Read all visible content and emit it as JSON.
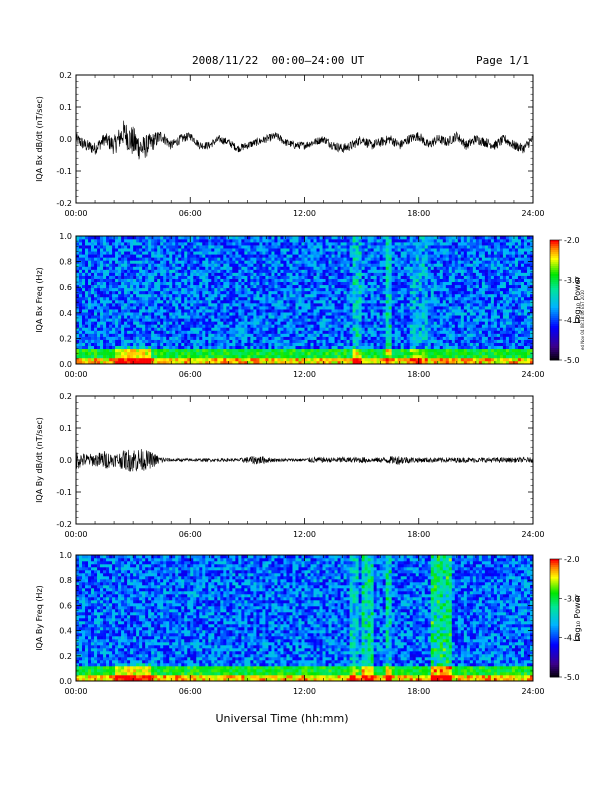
{
  "header": {
    "title": "2008/11/22  00:00–24:00 UT",
    "page": "Page 1/1"
  },
  "footer": {
    "xlabel": "Universal Time (hh:mm)"
  },
  "side_stamp": "ed Nov 04 08:18:06 EST 2010",
  "colorbar": {
    "label": "Log₁₀ Power",
    "ticks": [
      "-2.0",
      "-3.0",
      "-4.0",
      "-5.0"
    ]
  },
  "chart_data": [
    {
      "type": "line",
      "ylabel": "IQA Bx dB/dt (nT/sec)",
      "xlim": [
        0,
        24
      ],
      "ylim": [
        -0.2,
        0.2
      ],
      "yticks": [
        "0.2",
        "0.1",
        "0.0",
        "-0.1",
        "-0.2"
      ],
      "xticks": [
        "00:00",
        "06:00",
        "12:00",
        "18:00",
        "24:00"
      ],
      "series": [
        {
          "x": [
            0,
            0.5,
            1,
            1.5,
            2,
            2.5,
            3,
            3.5,
            4,
            4.5,
            5,
            5.5,
            6,
            6.5,
            7,
            7.5,
            8,
            8.5,
            9,
            9.5,
            10,
            10.5,
            11,
            11.5,
            12,
            12.5,
            13,
            13.5,
            14,
            14.5,
            15,
            15.5,
            16,
            16.5,
            17,
            17.5,
            18,
            18.5,
            19,
            19.5,
            20,
            20.5,
            21,
            21.5,
            22,
            22.5,
            23,
            23.5,
            24
          ],
          "y": [
            0.0,
            -0.02,
            -0.03,
            0.0,
            -0.02,
            0.02,
            -0.01,
            -0.03,
            -0.01,
            0.01,
            -0.02,
            0.0,
            0.01,
            -0.02,
            -0.02,
            0.0,
            -0.01,
            -0.03,
            -0.02,
            -0.01,
            0.0,
            0.01,
            -0.01,
            -0.02,
            -0.02,
            -0.01,
            0.0,
            -0.02,
            -0.03,
            -0.02,
            0.0,
            -0.02,
            -0.01,
            0.0,
            -0.02,
            0.0,
            0.01,
            -0.02,
            0.0,
            -0.01,
            0.01,
            -0.02,
            0.0,
            -0.01,
            -0.02,
            0.0,
            -0.02,
            -0.03,
            0.0
          ],
          "amp": [
            0.02,
            0.02,
            0.02,
            0.02,
            0.03,
            0.04,
            0.05,
            0.04,
            0.03,
            0.02,
            0.015,
            0.015,
            0.012,
            0.012,
            0.012,
            0.012,
            0.012,
            0.012,
            0.012,
            0.012,
            0.012,
            0.012,
            0.012,
            0.012,
            0.012,
            0.012,
            0.012,
            0.015,
            0.015,
            0.015,
            0.015,
            0.015,
            0.015,
            0.015,
            0.015,
            0.015,
            0.015,
            0.015,
            0.015,
            0.015,
            0.015,
            0.015,
            0.015,
            0.015,
            0.015,
            0.015,
            0.015,
            0.015,
            0.015
          ]
        }
      ]
    },
    {
      "type": "heatmap",
      "ylabel": "IQA Bx Freq (Hz)",
      "xlim": [
        0,
        24
      ],
      "ylim": [
        0,
        1.0
      ],
      "zlim": [
        -5.0,
        -2.0
      ],
      "yticks": [
        "1.0",
        "0.8",
        "0.6",
        "0.4",
        "0.2",
        "0.0"
      ],
      "xticks": [
        "00:00",
        "06:00",
        "12:00",
        "18:00",
        "24:00"
      ],
      "bright_bands": [
        [
          14.5,
          15.0,
          0.4
        ],
        [
          16.3,
          16.6,
          0.5
        ],
        [
          17.5,
          18.5,
          0.25
        ]
      ]
    },
    {
      "type": "line",
      "ylabel": "IQA By dB/dt (nT/sec)",
      "xlim": [
        0,
        24
      ],
      "ylim": [
        -0.2,
        0.2
      ],
      "yticks": [
        "0.2",
        "0.1",
        "0.0",
        "-0.1",
        "-0.2"
      ],
      "xticks": [
        "00:00",
        "06:00",
        "12:00",
        "18:00",
        "24:00"
      ],
      "series": [
        {
          "x": [
            0,
            0.5,
            1,
            1.5,
            2,
            2.5,
            3,
            3.5,
            4,
            4.5,
            5,
            5.5,
            6,
            6.5,
            7,
            7.5,
            8,
            8.5,
            9,
            9.5,
            10,
            10.5,
            11,
            11.5,
            12,
            12.5,
            13,
            13.5,
            14,
            14.5,
            15,
            15.5,
            16,
            16.5,
            17,
            17.5,
            18,
            18.5,
            19,
            19.5,
            20,
            20.5,
            21,
            21.5,
            22,
            22.5,
            23,
            23.5,
            24
          ],
          "y": [
            0.0,
            0.0,
            0.0,
            0.0,
            0.0,
            0.0,
            0.0,
            0.0,
            0.0,
            0.0,
            0.0,
            0.0,
            0.0,
            0.0,
            0.0,
            0.0,
            0.0,
            0.0,
            0.0,
            0.0,
            0.0,
            0.0,
            0.0,
            0.0,
            0.0,
            0.0,
            0.0,
            0.0,
            0.0,
            0.0,
            0.0,
            0.0,
            0.0,
            0.0,
            0.0,
            0.0,
            0.0,
            0.0,
            0.0,
            0.0,
            0.0,
            0.0,
            0.0,
            0.0,
            0.0,
            0.0,
            0.0,
            0.0,
            0.0
          ],
          "amp": [
            0.03,
            0.02,
            0.02,
            0.03,
            0.02,
            0.03,
            0.04,
            0.035,
            0.025,
            0.01,
            0.005,
            0.005,
            0.005,
            0.005,
            0.005,
            0.005,
            0.005,
            0.005,
            0.01,
            0.015,
            0.01,
            0.005,
            0.005,
            0.005,
            0.005,
            0.01,
            0.008,
            0.008,
            0.01,
            0.008,
            0.01,
            0.008,
            0.008,
            0.012,
            0.015,
            0.01,
            0.008,
            0.008,
            0.008,
            0.008,
            0.008,
            0.008,
            0.008,
            0.008,
            0.008,
            0.008,
            0.008,
            0.008,
            0.008
          ]
        }
      ]
    },
    {
      "type": "heatmap",
      "ylabel": "IQA By Freq (Hz)",
      "xlim": [
        0,
        24
      ],
      "ylim": [
        0,
        1.0
      ],
      "zlim": [
        -5.0,
        -2.0
      ],
      "yticks": [
        "1.0",
        "0.8",
        "0.6",
        "0.4",
        "0.2",
        "0.0"
      ],
      "xticks": [
        "00:00",
        "06:00",
        "12:00",
        "18:00",
        "24:00"
      ],
      "bright_bands": [
        [
          14.4,
          14.8,
          0.35
        ],
        [
          15.0,
          15.6,
          0.6
        ],
        [
          16.3,
          16.6,
          0.5
        ],
        [
          18.7,
          19.7,
          0.7
        ]
      ]
    }
  ],
  "colors": {
    "axis": "#000000",
    "trace": "#000000"
  }
}
